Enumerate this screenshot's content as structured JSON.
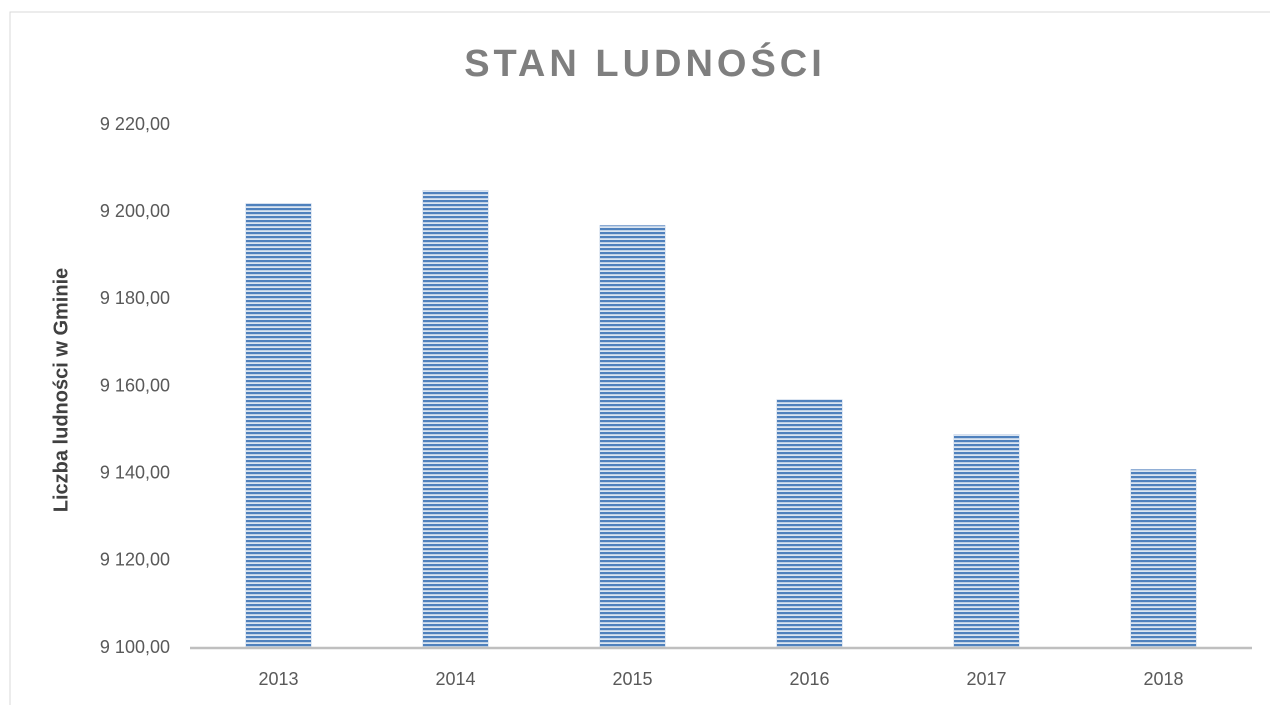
{
  "chart_data": {
    "type": "bar",
    "title": "STAN LUDNOŚCI",
    "y_label": "Liczba ludności w Gminie",
    "categories": [
      "2013",
      "2014",
      "2015",
      "2016",
      "2017",
      "2018"
    ],
    "values": [
      9202,
      9205,
      9197,
      9157,
      9149,
      9141
    ],
    "color": "#4f81bd",
    "ylim": [
      9100,
      9220
    ],
    "yticks": [
      {
        "value": 9100,
        "label": "9 100,00"
      },
      {
        "value": 9120,
        "label": "9 120,00"
      },
      {
        "value": 9140,
        "label": "9 140,00"
      },
      {
        "value": 9160,
        "label": "9 160,00"
      },
      {
        "value": 9180,
        "label": "9 180,00"
      },
      {
        "value": 9200,
        "label": "9 200,00"
      },
      {
        "value": 9220,
        "label": "9 220,00"
      }
    ],
    "grid": false
  }
}
